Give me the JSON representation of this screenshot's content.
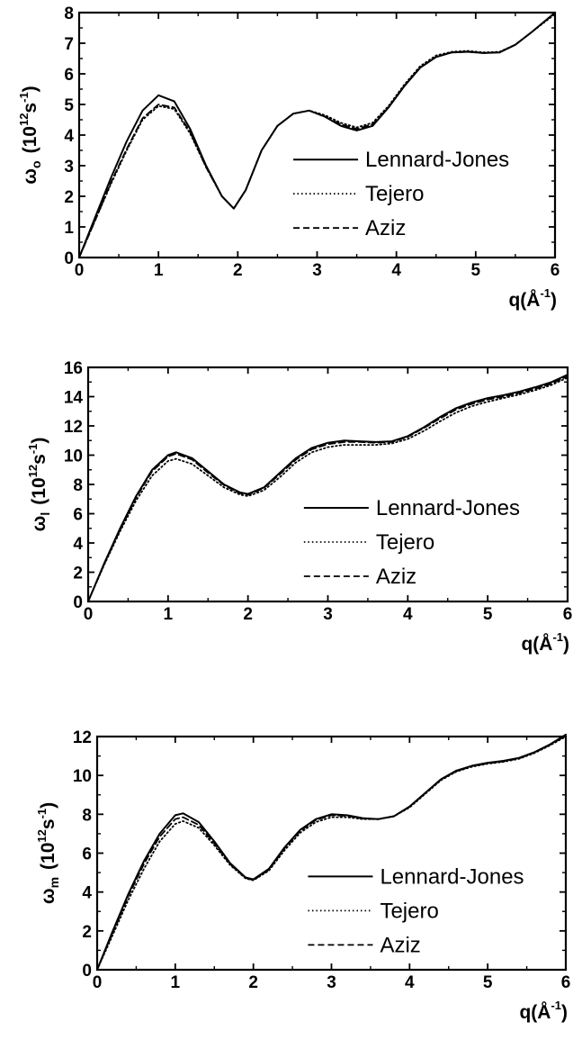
{
  "chart_data": [
    {
      "type": "line",
      "id": "panel-omega-o",
      "ylabel": "ω_o (10^12 s^-1)",
      "ylabel_parts": {
        "symbol": "ω",
        "sub": "o",
        "unit": "10",
        "exp": "12",
        "unit2": "s",
        "exp2": "-1"
      },
      "xlabel": "q(Å^-1)",
      "xlabel_parts": {
        "text": "q(Å",
        "exp": "-1",
        "close": ")"
      },
      "xlim": [
        0,
        6
      ],
      "ylim": [
        0,
        8
      ],
      "xticks": [
        0,
        1,
        2,
        3,
        4,
        5,
        6
      ],
      "yticks": [
        0,
        1,
        2,
        3,
        4,
        5,
        6,
        7,
        8
      ],
      "legend_position": "center-right",
      "series": [
        {
          "name": "Lennard-Jones",
          "style": "solid",
          "x": [
            0,
            0.2,
            0.4,
            0.6,
            0.8,
            1.0,
            1.2,
            1.4,
            1.6,
            1.8,
            1.95,
            2.1,
            2.3,
            2.5,
            2.7,
            2.9,
            3.1,
            3.3,
            3.5,
            3.7,
            3.9,
            4.1,
            4.3,
            4.5,
            4.7,
            4.9,
            5.1,
            5.3,
            5.5,
            5.7,
            6.0
          ],
          "y": [
            0,
            1.3,
            2.6,
            3.8,
            4.8,
            5.3,
            5.1,
            4.2,
            3.0,
            2.0,
            1.6,
            2.2,
            3.5,
            4.3,
            4.7,
            4.8,
            4.6,
            4.3,
            4.15,
            4.3,
            4.9,
            5.6,
            6.2,
            6.55,
            6.7,
            6.72,
            6.68,
            6.7,
            6.95,
            7.35,
            8.0
          ]
        },
        {
          "name": "Tejero",
          "style": "dotted",
          "x": [
            0,
            0.2,
            0.4,
            0.6,
            0.8,
            1.0,
            1.2,
            1.4,
            1.6,
            1.8,
            1.95,
            2.1,
            2.3,
            2.5,
            2.7,
            2.9,
            3.1,
            3.3,
            3.5,
            3.7,
            3.9,
            4.1,
            4.3,
            4.5,
            4.7,
            4.9,
            5.1,
            5.3,
            5.5,
            5.7,
            6.0
          ],
          "y": [
            0,
            1.2,
            2.4,
            3.5,
            4.5,
            4.95,
            4.85,
            4.05,
            2.95,
            2.0,
            1.6,
            2.2,
            3.5,
            4.3,
            4.7,
            4.8,
            4.65,
            4.4,
            4.25,
            4.4,
            4.95,
            5.65,
            6.25,
            6.6,
            6.72,
            6.75,
            6.7,
            6.72,
            6.95,
            7.35,
            7.95
          ]
        },
        {
          "name": "Aziz",
          "style": "dashed",
          "x": [
            0,
            0.2,
            0.4,
            0.6,
            0.8,
            1.0,
            1.2,
            1.4,
            1.6,
            1.8,
            1.95,
            2.1,
            2.3,
            2.5,
            2.7,
            2.9,
            3.1,
            3.3,
            3.5,
            3.7,
            3.9,
            4.1,
            4.3,
            4.5,
            4.7,
            4.9,
            5.1,
            5.3,
            5.5,
            5.7,
            6.0
          ],
          "y": [
            0,
            1.2,
            2.45,
            3.55,
            4.55,
            5.0,
            4.9,
            4.1,
            2.95,
            2.0,
            1.6,
            2.2,
            3.5,
            4.3,
            4.7,
            4.8,
            4.6,
            4.35,
            4.2,
            4.35,
            4.9,
            5.6,
            6.2,
            6.55,
            6.7,
            6.72,
            6.68,
            6.7,
            6.95,
            7.35,
            8.0
          ]
        }
      ]
    },
    {
      "type": "line",
      "id": "panel-omega-l",
      "ylabel": "ω_l (10^12 s^-1)",
      "ylabel_parts": {
        "symbol": "ω",
        "sub": "l",
        "unit": "10",
        "exp": "12",
        "unit2": "s",
        "exp2": "-1"
      },
      "xlabel": "q(Å^-1)",
      "xlabel_parts": {
        "text": "q(Å",
        "exp": "-1",
        "close": ")"
      },
      "xlim": [
        0,
        6
      ],
      "ylim": [
        0,
        16
      ],
      "xticks": [
        0,
        1,
        2,
        3,
        4,
        5,
        6
      ],
      "yticks": [
        0,
        2,
        4,
        6,
        8,
        10,
        12,
        14,
        16
      ],
      "legend_position": "center-right",
      "series": [
        {
          "name": "Lennard-Jones",
          "style": "solid",
          "x": [
            0,
            0.2,
            0.4,
            0.6,
            0.8,
            1.0,
            1.1,
            1.3,
            1.5,
            1.7,
            1.9,
            2.0,
            2.2,
            2.4,
            2.6,
            2.8,
            3.0,
            3.2,
            3.4,
            3.6,
            3.8,
            4.0,
            4.2,
            4.4,
            4.6,
            4.8,
            5.0,
            5.2,
            5.4,
            5.6,
            5.8,
            6.0
          ],
          "y": [
            0,
            2.6,
            5.0,
            7.2,
            9.0,
            10.0,
            10.2,
            9.8,
            8.9,
            8.0,
            7.45,
            7.35,
            7.8,
            8.8,
            9.8,
            10.5,
            10.85,
            11.0,
            10.95,
            10.9,
            10.95,
            11.3,
            11.9,
            12.6,
            13.2,
            13.6,
            13.9,
            14.1,
            14.35,
            14.65,
            15.0,
            15.5
          ]
        },
        {
          "name": "Tejero",
          "style": "dotted",
          "x": [
            0,
            0.2,
            0.4,
            0.6,
            0.8,
            1.0,
            1.1,
            1.3,
            1.5,
            1.7,
            1.9,
            2.0,
            2.2,
            2.4,
            2.6,
            2.8,
            3.0,
            3.2,
            3.4,
            3.6,
            3.8,
            4.0,
            4.2,
            4.4,
            4.6,
            4.8,
            5.0,
            5.2,
            5.4,
            5.6,
            5.8,
            6.0
          ],
          "y": [
            0,
            2.5,
            4.8,
            6.9,
            8.6,
            9.6,
            9.75,
            9.4,
            8.6,
            7.8,
            7.3,
            7.2,
            7.6,
            8.5,
            9.5,
            10.2,
            10.55,
            10.7,
            10.7,
            10.7,
            10.8,
            11.1,
            11.65,
            12.3,
            12.9,
            13.35,
            13.65,
            13.9,
            14.15,
            14.45,
            14.8,
            15.3
          ]
        },
        {
          "name": "Aziz",
          "style": "dashed",
          "x": [
            0,
            0.2,
            0.4,
            0.6,
            0.8,
            1.0,
            1.1,
            1.3,
            1.5,
            1.7,
            1.9,
            2.0,
            2.2,
            2.4,
            2.6,
            2.8,
            3.0,
            3.2,
            3.4,
            3.6,
            3.8,
            4.0,
            4.2,
            4.4,
            4.6,
            4.8,
            5.0,
            5.2,
            5.4,
            5.6,
            5.8,
            6.0
          ],
          "y": [
            0,
            2.55,
            4.9,
            7.1,
            8.9,
            9.9,
            10.1,
            9.7,
            8.8,
            7.95,
            7.4,
            7.3,
            7.75,
            8.7,
            9.7,
            10.4,
            10.75,
            10.9,
            10.9,
            10.85,
            10.9,
            11.25,
            11.85,
            12.5,
            13.1,
            13.5,
            13.8,
            14.0,
            14.25,
            14.55,
            14.9,
            15.4
          ]
        }
      ]
    },
    {
      "type": "line",
      "id": "panel-omega-m",
      "ylabel": "ω_m (10^12 s^-1)",
      "ylabel_parts": {
        "symbol": "ω",
        "sub": "m",
        "unit": "10",
        "exp": "12",
        "unit2": "s",
        "exp2": "-1"
      },
      "xlabel": "q(Å^-1)",
      "xlabel_parts": {
        "text": "q(Å",
        "exp": "-1",
        "close": ")"
      },
      "xlim": [
        0,
        6
      ],
      "ylim": [
        0,
        12
      ],
      "xticks": [
        0,
        1,
        2,
        3,
        4,
        5,
        6
      ],
      "yticks": [
        0,
        2,
        4,
        6,
        8,
        10,
        12
      ],
      "legend_position": "center-right",
      "series": [
        {
          "name": "Lennard-Jones",
          "style": "solid",
          "x": [
            0,
            0.2,
            0.4,
            0.6,
            0.8,
            1.0,
            1.1,
            1.3,
            1.5,
            1.7,
            1.9,
            2.0,
            2.2,
            2.4,
            2.6,
            2.8,
            3.0,
            3.2,
            3.4,
            3.6,
            3.8,
            4.0,
            4.2,
            4.4,
            4.6,
            4.8,
            5.0,
            5.2,
            5.4,
            5.6,
            5.8,
            6.0
          ],
          "y": [
            0,
            2.0,
            3.9,
            5.6,
            7.0,
            7.95,
            8.05,
            7.6,
            6.6,
            5.5,
            4.75,
            4.65,
            5.2,
            6.3,
            7.2,
            7.75,
            8.0,
            7.95,
            7.8,
            7.75,
            7.9,
            8.4,
            9.1,
            9.8,
            10.25,
            10.5,
            10.65,
            10.75,
            10.9,
            11.2,
            11.6,
            12.1
          ]
        },
        {
          "name": "Tejero",
          "style": "dotted",
          "x": [
            0,
            0.2,
            0.4,
            0.6,
            0.8,
            1.0,
            1.1,
            1.3,
            1.5,
            1.7,
            1.9,
            2.0,
            2.2,
            2.4,
            2.6,
            2.8,
            3.0,
            3.2,
            3.4,
            3.6,
            3.8,
            4.0,
            4.2,
            4.4,
            4.6,
            4.8,
            5.0,
            5.2,
            5.4,
            5.6,
            5.8,
            6.0
          ],
          "y": [
            0,
            1.8,
            3.6,
            5.2,
            6.6,
            7.5,
            7.65,
            7.3,
            6.4,
            5.4,
            4.7,
            4.6,
            5.1,
            6.15,
            7.05,
            7.6,
            7.85,
            7.85,
            7.75,
            7.75,
            7.9,
            8.35,
            9.05,
            9.75,
            10.2,
            10.45,
            10.6,
            10.7,
            10.85,
            11.15,
            11.55,
            12.0
          ]
        },
        {
          "name": "Aziz",
          "style": "dashed",
          "x": [
            0,
            0.2,
            0.4,
            0.6,
            0.8,
            1.0,
            1.1,
            1.3,
            1.5,
            1.7,
            1.9,
            2.0,
            2.2,
            2.4,
            2.6,
            2.8,
            3.0,
            3.2,
            3.4,
            3.6,
            3.8,
            4.0,
            4.2,
            4.4,
            4.6,
            4.8,
            5.0,
            5.2,
            5.4,
            5.6,
            5.8,
            6.0
          ],
          "y": [
            0,
            1.9,
            3.8,
            5.45,
            6.85,
            7.75,
            7.85,
            7.45,
            6.5,
            5.45,
            4.72,
            4.62,
            5.15,
            6.25,
            7.15,
            7.7,
            7.95,
            7.92,
            7.78,
            7.75,
            7.9,
            8.38,
            9.08,
            9.78,
            10.22,
            10.48,
            10.62,
            10.72,
            10.88,
            11.18,
            11.58,
            12.05
          ]
        }
      ]
    }
  ]
}
